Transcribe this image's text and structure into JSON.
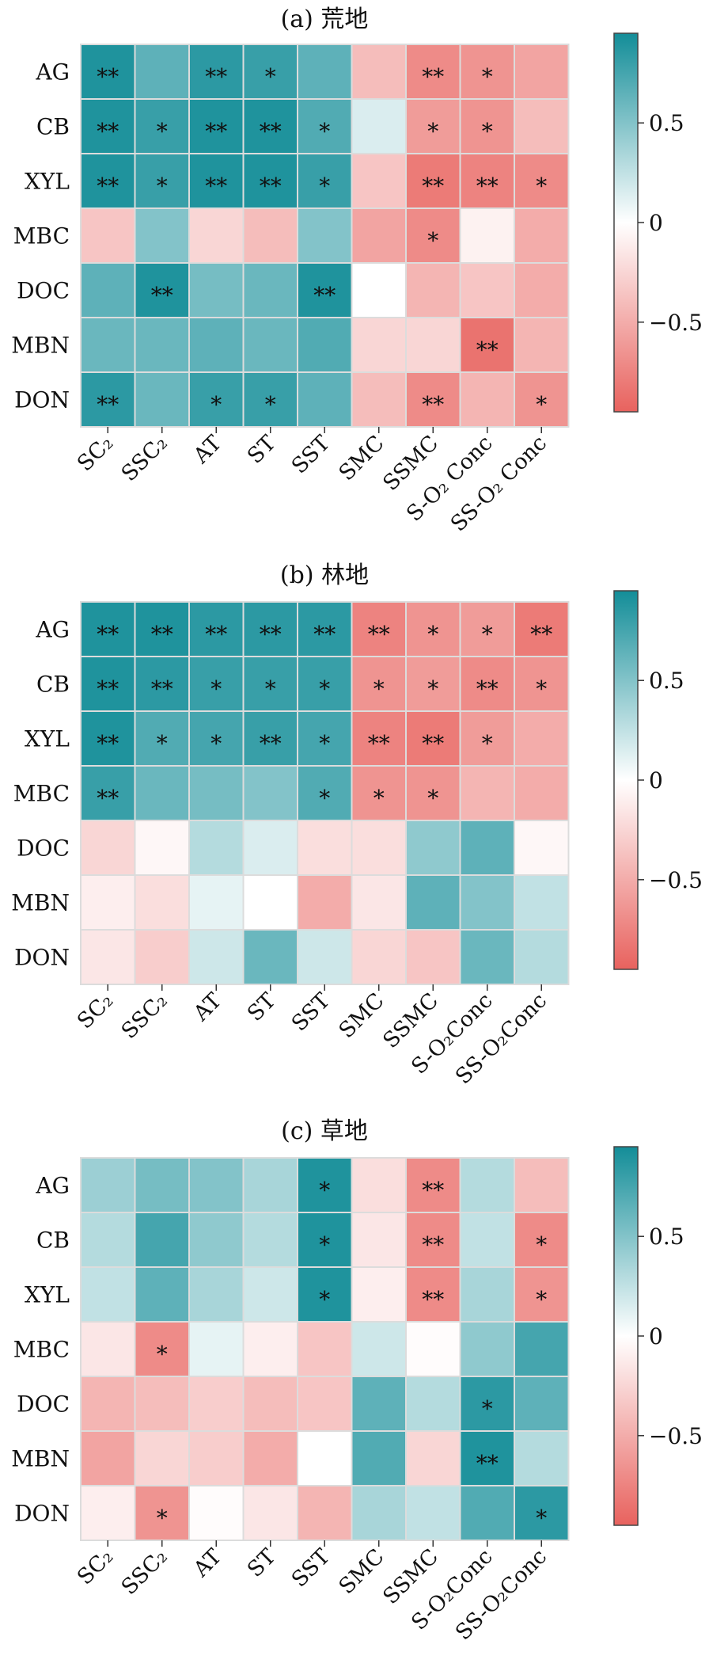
{
  "colors": {
    "negative": "#e8625e",
    "zero": "#ffffff",
    "positive": "#138d98",
    "cell_border": "#dcdcdc",
    "colorbar_frame": "#444444"
  },
  "chart_data": [
    {
      "type": "heatmap",
      "title": "(a) 荒地",
      "rows": [
        "AG",
        "CB",
        "XYL",
        "MBC",
        "DOC",
        "MBN",
        "DON"
      ],
      "columns": [
        "SC₂",
        "SSC₂",
        "AT",
        "ST",
        "SST",
        "SMC",
        "SSMC",
        "S-O₂ Conc",
        "SS-O₂ Conc"
      ],
      "values": [
        [
          0.9,
          0.65,
          0.85,
          0.8,
          0.65,
          -0.4,
          -0.7,
          -0.65,
          -0.55
        ],
        [
          0.9,
          0.8,
          0.9,
          0.9,
          0.7,
          0.15,
          -0.6,
          -0.65,
          -0.4
        ],
        [
          0.9,
          0.8,
          0.9,
          0.9,
          0.8,
          -0.35,
          -0.8,
          -0.75,
          -0.7
        ],
        [
          -0.35,
          0.5,
          -0.25,
          -0.4,
          0.5,
          -0.55,
          -0.7,
          -0.08,
          -0.5
        ],
        [
          0.65,
          0.9,
          0.55,
          0.6,
          0.9,
          0.0,
          -0.45,
          -0.35,
          -0.5
        ],
        [
          0.6,
          0.6,
          0.65,
          0.6,
          0.7,
          -0.25,
          -0.25,
          -0.85,
          -0.45
        ],
        [
          0.85,
          0.6,
          0.8,
          0.8,
          0.65,
          -0.4,
          -0.7,
          -0.45,
          -0.65
        ]
      ],
      "significance": [
        [
          "**",
          "",
          "**",
          "*",
          "",
          "",
          "**",
          "*",
          ""
        ],
        [
          "**",
          "*",
          "**",
          "**",
          "*",
          "",
          "*",
          "*",
          ""
        ],
        [
          "**",
          "*",
          "**",
          "**",
          "*",
          "",
          "**",
          "**",
          "*"
        ],
        [
          "",
          "",
          "",
          "",
          "",
          "",
          "*",
          "",
          ""
        ],
        [
          "",
          "**",
          "",
          "",
          "**",
          "",
          "",
          "",
          ""
        ],
        [
          "",
          "",
          "",
          "",
          "",
          "",
          "",
          "**",
          ""
        ],
        [
          "**",
          "",
          "*",
          "*",
          "",
          "",
          "**",
          "",
          "*"
        ]
      ],
      "colorbar": {
        "ticks": [
          0.5,
          0,
          -0.5
        ],
        "tick_labels": [
          "0.5",
          "0",
          "−0.5"
        ],
        "range": [
          -0.95,
          0.95
        ]
      }
    },
    {
      "type": "heatmap",
      "title": "(b) 林地",
      "rows": [
        "AG",
        "CB",
        "XYL",
        "MBC",
        "DOC",
        "MBN",
        "DON"
      ],
      "columns": [
        "SC₂",
        "SSC₂",
        "AT",
        "ST",
        "SST",
        "SMC",
        "SSMC",
        "S-O₂Conc",
        "SS-O₂Conc"
      ],
      "values": [
        [
          0.9,
          0.9,
          0.85,
          0.85,
          0.85,
          -0.75,
          -0.65,
          -0.6,
          -0.8
        ],
        [
          0.9,
          0.85,
          0.8,
          0.8,
          0.8,
          -0.65,
          -0.6,
          -0.7,
          -0.65
        ],
        [
          0.9,
          0.7,
          0.75,
          0.8,
          0.75,
          -0.75,
          -0.8,
          -0.6,
          -0.5
        ],
        [
          0.8,
          0.6,
          0.55,
          0.5,
          0.7,
          -0.65,
          -0.65,
          -0.45,
          -0.5
        ],
        [
          -0.25,
          -0.05,
          0.3,
          0.15,
          -0.2,
          -0.2,
          0.45,
          0.65,
          -0.05
        ],
        [
          -0.1,
          -0.2,
          0.1,
          0.0,
          -0.5,
          -0.15,
          0.65,
          0.5,
          0.25
        ],
        [
          -0.15,
          -0.3,
          0.2,
          0.6,
          0.2,
          -0.25,
          -0.35,
          0.6,
          0.3
        ]
      ],
      "significance": [
        [
          "**",
          "**",
          "**",
          "**",
          "**",
          "**",
          "*",
          "*",
          "**"
        ],
        [
          "**",
          "**",
          "*",
          "*",
          "*",
          "*",
          "*",
          "**",
          "*"
        ],
        [
          "**",
          "*",
          "*",
          "**",
          "*",
          "**",
          "**",
          "*",
          ""
        ],
        [
          "**",
          "",
          "",
          "",
          "*",
          "*",
          "*",
          "",
          ""
        ],
        [
          "",
          "",
          "",
          "",
          "",
          "",
          "",
          "",
          ""
        ],
        [
          "",
          "",
          "",
          "",
          "",
          "",
          "",
          "",
          ""
        ],
        [
          "",
          "",
          "",
          "",
          "",
          "",
          "",
          "",
          ""
        ]
      ],
      "colorbar": {
        "ticks": [
          0.5,
          0,
          -0.5
        ],
        "tick_labels": [
          "0.5",
          "0",
          "−0.5"
        ],
        "range": [
          -0.95,
          0.95
        ]
      }
    },
    {
      "type": "heatmap",
      "title": "(c) 草地",
      "rows": [
        "AG",
        "CB",
        "XYL",
        "MBC",
        "DOC",
        "MBN",
        "DON"
      ],
      "columns": [
        "SC₂",
        "SSC₂",
        "AT",
        "ST",
        "SST",
        "SMC",
        "SSMC",
        "S-O₂Conc",
        "SS-O₂Conc"
      ],
      "values": [
        [
          0.4,
          0.55,
          0.5,
          0.35,
          0.9,
          -0.2,
          -0.7,
          0.3,
          -0.4
        ],
        [
          0.3,
          0.75,
          0.45,
          0.3,
          0.9,
          -0.15,
          -0.7,
          0.25,
          -0.7
        ],
        [
          0.25,
          0.65,
          0.35,
          0.2,
          0.9,
          -0.1,
          -0.7,
          0.35,
          -0.65
        ],
        [
          -0.15,
          -0.7,
          0.1,
          -0.1,
          -0.35,
          0.2,
          -0.02,
          0.45,
          0.75
        ],
        [
          -0.45,
          -0.4,
          -0.3,
          -0.4,
          -0.35,
          0.65,
          0.3,
          0.85,
          0.65
        ],
        [
          -0.55,
          -0.25,
          -0.3,
          -0.5,
          0.0,
          0.7,
          -0.25,
          0.9,
          0.3
        ],
        [
          -0.1,
          -0.65,
          -0.02,
          -0.15,
          -0.45,
          0.35,
          0.25,
          0.7,
          0.85
        ]
      ],
      "significance": [
        [
          "",
          "",
          "",
          "",
          "*",
          "",
          "**",
          "",
          ""
        ],
        [
          "",
          "",
          "",
          "",
          "*",
          "",
          "**",
          "",
          "*"
        ],
        [
          "",
          "",
          "",
          "",
          "*",
          "",
          "**",
          "",
          "*"
        ],
        [
          "",
          "*",
          "",
          "",
          "",
          "",
          "",
          "",
          ""
        ],
        [
          "",
          "",
          "",
          "",
          "",
          "",
          "",
          "*",
          ""
        ],
        [
          "",
          "",
          "",
          "",
          "",
          "",
          "",
          "**",
          ""
        ],
        [
          "",
          "*",
          "",
          "",
          "",
          "",
          "",
          "",
          "*"
        ]
      ],
      "colorbar": {
        "ticks": [
          0.5,
          0,
          -0.5
        ],
        "tick_labels": [
          "0.5",
          "0",
          "−0.5"
        ],
        "range": [
          -0.95,
          0.95
        ]
      }
    }
  ]
}
